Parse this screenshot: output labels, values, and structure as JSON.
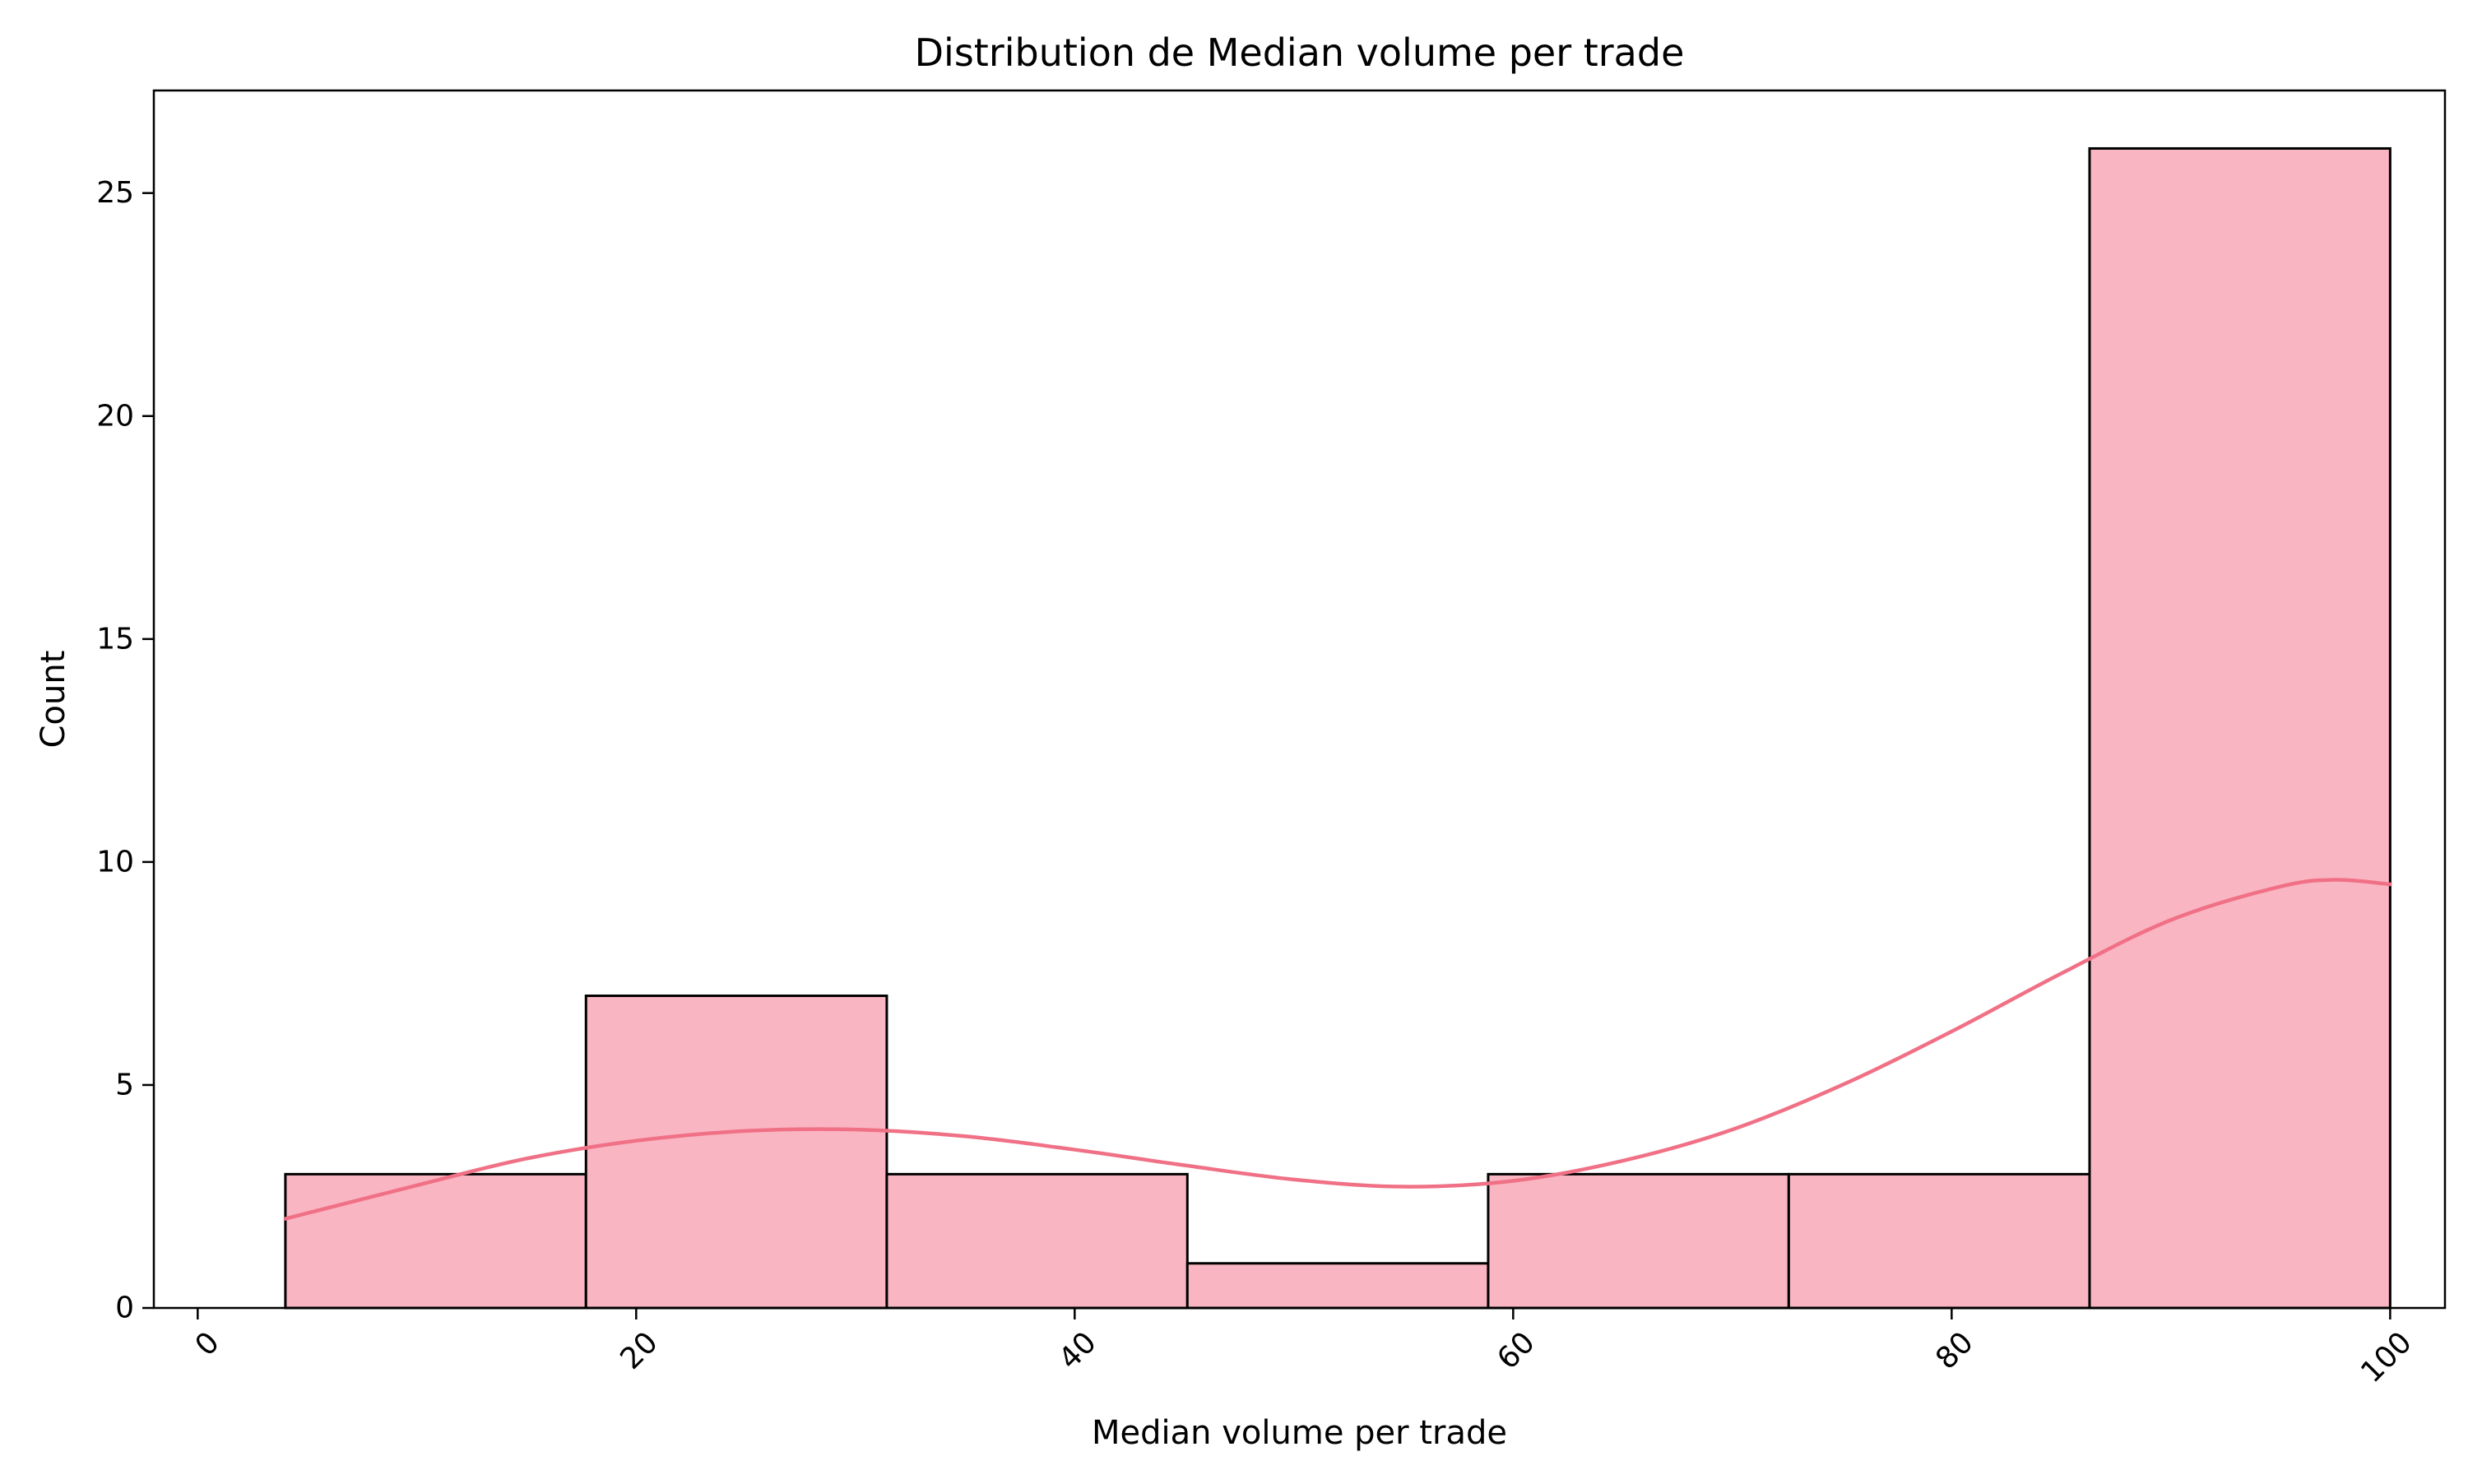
{
  "colors": {
    "bar_fill": "#f9b5c2",
    "bar_edge": "#000000",
    "kde_line": "#f07086",
    "axes": "#000000",
    "background": "#ffffff"
  },
  "chart_data": {
    "type": "bar",
    "subtype": "histogram",
    "title": "Distribution de Median volume per trade",
    "xlabel": "Median volume per trade",
    "ylabel": "Count",
    "xlim": [
      -2,
      102.5
    ],
    "ylim": [
      0,
      27.3
    ],
    "xticks": [
      0,
      20,
      40,
      60,
      80,
      100
    ],
    "xtick_labels": [
      "0",
      "20",
      "40",
      "60",
      "80",
      "100"
    ],
    "xtick_rotation": "45 degrees",
    "yticks": [
      0,
      5,
      10,
      15,
      20,
      25
    ],
    "ytick_labels": [
      "0",
      "5",
      "10",
      "15",
      "20",
      "25"
    ],
    "bin_edges": [
      4.0,
      17.71,
      31.43,
      45.14,
      58.86,
      72.57,
      86.29,
      100.0
    ],
    "counts": [
      3,
      7,
      3,
      1,
      3,
      3,
      26
    ],
    "kde": {
      "x": [
        4,
        10,
        15,
        20,
        25,
        30,
        35,
        40,
        45,
        50,
        55,
        60,
        65,
        70,
        75,
        80,
        85,
        90,
        95,
        97.5,
        100
      ],
      "y": [
        2.0,
        2.75,
        3.35,
        3.75,
        3.97,
        4.0,
        3.85,
        3.55,
        3.2,
        2.88,
        2.72,
        2.85,
        3.3,
        4.0,
        5.0,
        6.2,
        7.5,
        8.7,
        9.45,
        9.6,
        9.5
      ]
    },
    "grid": false,
    "legend": "none"
  }
}
